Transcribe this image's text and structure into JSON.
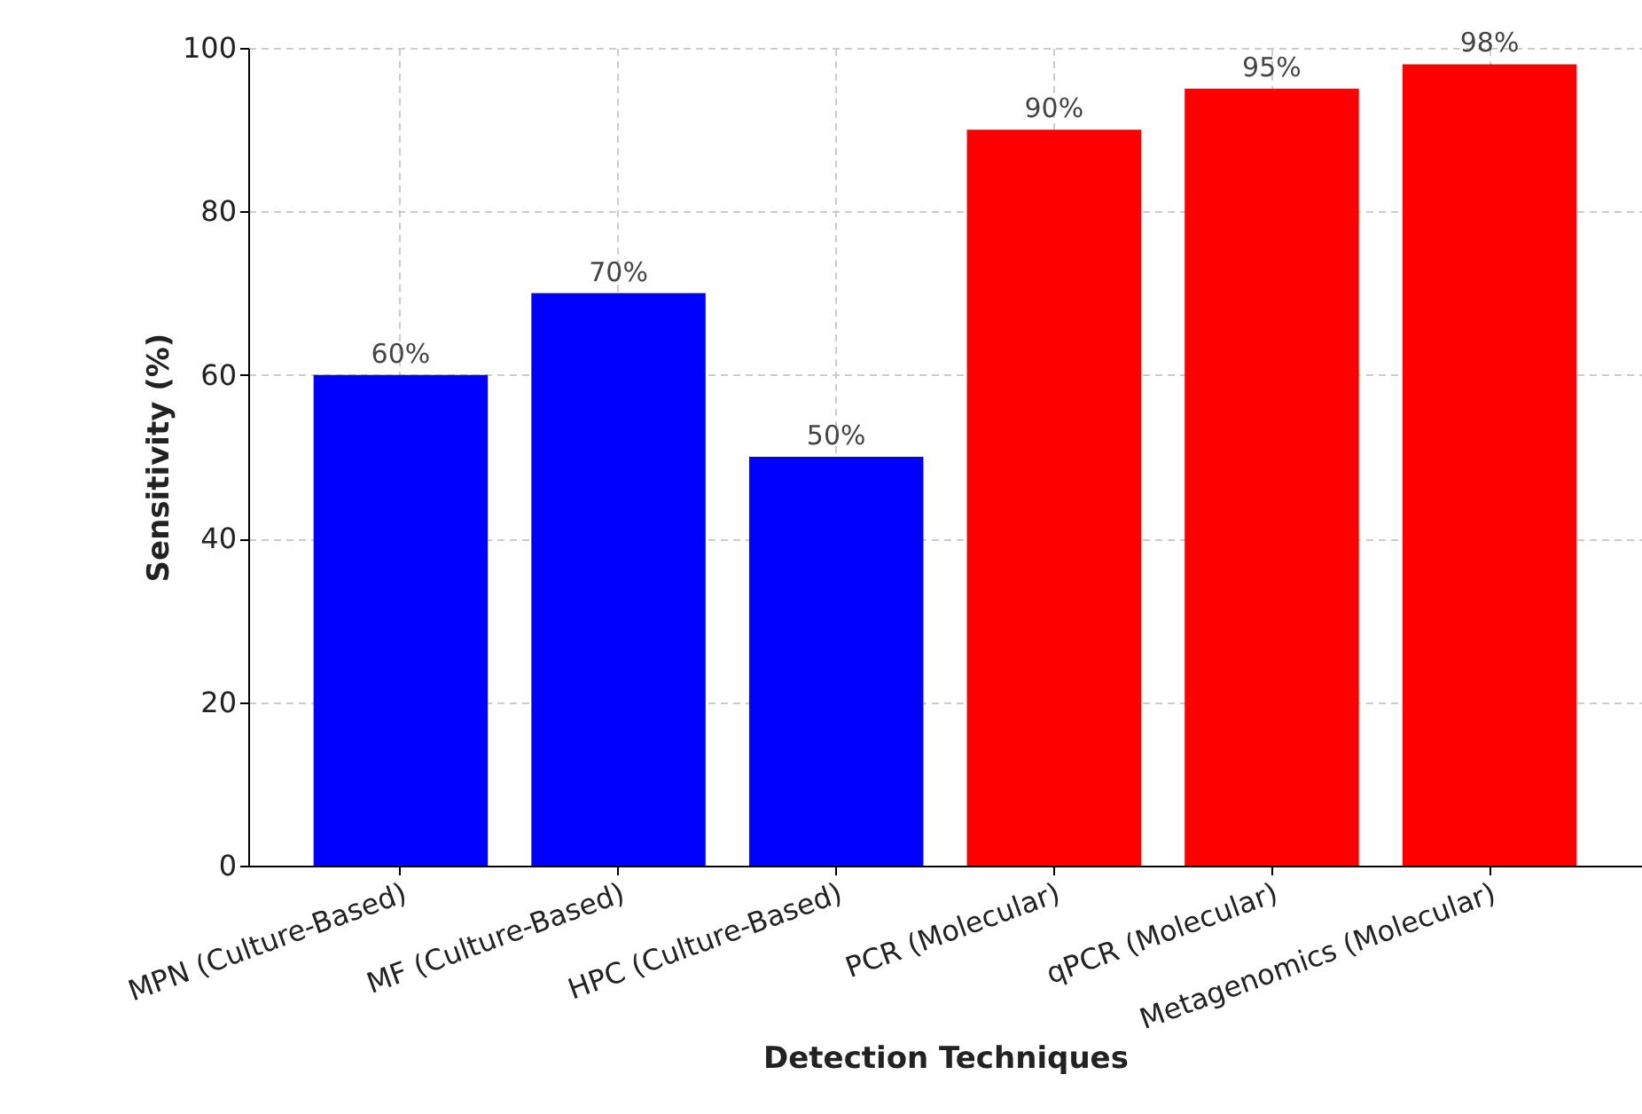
{
  "chart_data": {
    "type": "bar",
    "xlabel": "Detection Techniques",
    "ylabel": "Sensitivity (%)",
    "categories": [
      "MPN (Culture-Based)",
      "MF (Culture-Based)",
      "HPC (Culture-Based)",
      "PCR (Molecular)",
      "qPCR (Molecular)",
      "Metagenomics (Molecular)"
    ],
    "values": [
      60,
      70,
      50,
      90,
      95,
      98
    ],
    "colors": [
      "#0000ff",
      "#0000ff",
      "#0000ff",
      "#ff0000",
      "#ff0000",
      "#ff0000"
    ],
    "value_labels": [
      "60%",
      "70%",
      "50%",
      "90%",
      "95%",
      "98%"
    ],
    "ylim": [
      0,
      100
    ],
    "yticks": [
      0,
      20,
      40,
      60,
      80,
      100
    ],
    "grid": true
  }
}
